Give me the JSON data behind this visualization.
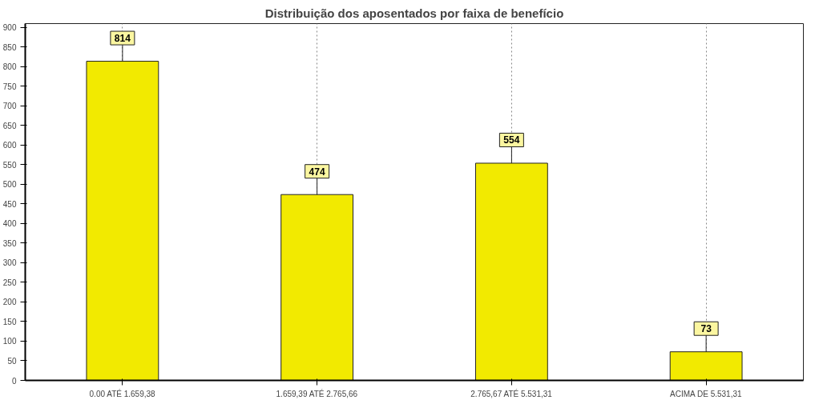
{
  "chart_data": {
    "type": "bar",
    "title": "Distribuição dos aposentados por faixa de benefício",
    "categories": [
      "0.00 ATÉ 1.659,38",
      "1.659,39 ATÉ 2.765,66",
      "2.765,67 ATÉ 5.531,31",
      "ACIMA DE 5.531,31"
    ],
    "values": [
      814,
      474,
      554,
      73
    ],
    "color": "#f2ea00",
    "ylim": [
      0,
      910
    ],
    "yticks": [
      0,
      50,
      100,
      150,
      200,
      250,
      300,
      350,
      400,
      450,
      500,
      550,
      600,
      650,
      700,
      750,
      800,
      850,
      900
    ],
    "grid": "x",
    "data_labels": true
  }
}
